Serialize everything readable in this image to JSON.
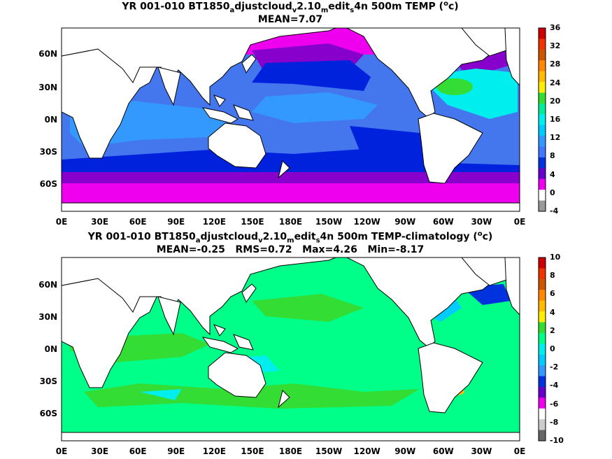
{
  "panels": [
    {
      "title_parts": [
        "YR 001-010 BT1850",
        "a",
        "djustcloud",
        "v",
        "2.10",
        "m",
        "edit",
        "s",
        "4n 500m TEMP (",
        "o",
        "c)"
      ],
      "stats": "MEAN=7.07",
      "colorbar_ticks": [
        "36",
        "32",
        "28",
        "24",
        "20",
        "16",
        "12",
        "8",
        "4",
        "0",
        "-4"
      ],
      "colorbar_colors": [
        "#cc0000",
        "#ee3300",
        "#cc5500",
        "#ff8800",
        "#ffbb00",
        "#ffee00",
        "#33dd33",
        "#00ee99",
        "#00eeee",
        "#00ccff",
        "#3399ff",
        "#4477ff",
        "#0033dd",
        "#6600cc",
        "#ee00ee",
        "#ffffff",
        "#999999"
      ]
    },
    {
      "title_parts": [
        "YR 001-010 BT1850",
        "a",
        "djustcloud",
        "v",
        "2.10",
        "m",
        "edit",
        "s",
        "4n 500m TEMP-climatology (",
        "o",
        "c)"
      ],
      "stats": "MEAN=-0.25   RMS=0.72   Max=4.26   Min=-8.17",
      "colorbar_ticks": [
        "10",
        "8",
        "6",
        "4",
        "2",
        "0",
        "-2",
        "-4",
        "-6",
        "-8",
        "-10"
      ],
      "colorbar_colors": [
        "#cc0000",
        "#ee3300",
        "#cc5500",
        "#ff8800",
        "#ffbb00",
        "#ffee00",
        "#33dd33",
        "#00ff88",
        "#00eeee",
        "#00ccff",
        "#3399ff",
        "#0033dd",
        "#6600cc",
        "#ee00ee",
        "#ffffff",
        "#cccccc",
        "#666666"
      ]
    }
  ],
  "lat_labels": [
    "60N",
    "30N",
    "0N",
    "30S",
    "60S"
  ],
  "lon_labels": [
    "0E",
    "30E",
    "60E",
    "90E",
    "120E",
    "150E",
    "180E",
    "150W",
    "120W",
    "90W",
    "60W",
    "30W",
    "0E"
  ],
  "field_colors": {
    "ocean_mid": "#4477ee",
    "ocean_warm": "#3399ff",
    "subtropic": "#00eeee",
    "deep_blue": "#0022dd",
    "purple": "#8800cc",
    "magenta": "#ee00ee",
    "land": "#ffffff",
    "anom_base": "#00ff88",
    "anom_green": "#33dd33",
    "anom_cyan": "#00eeee"
  }
}
